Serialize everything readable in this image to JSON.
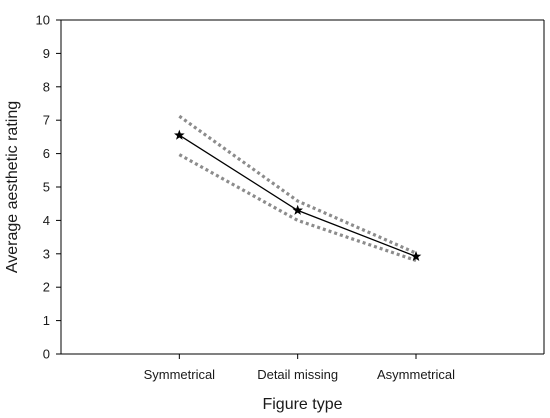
{
  "chart_data": {
    "type": "line",
    "title": "",
    "xlabel": "Figure type",
    "ylabel": "Average aesthetic rating",
    "categories": [
      "Symmetrical",
      "Detail missing",
      "Asymmetrical"
    ],
    "ylim": [
      0,
      10
    ],
    "yticks": [
      0,
      1,
      2,
      3,
      4,
      5,
      6,
      7,
      8,
      9,
      10
    ],
    "grid": false,
    "series": [
      {
        "values": [
          6.55,
          4.3,
          2.92
        ],
        "style": "solid",
        "marker": "star",
        "color": "#000000"
      },
      {
        "values": [
          7.12,
          4.58,
          3.02
        ],
        "style": "dotted",
        "color": "#8c8c8c"
      },
      {
        "values": [
          5.97,
          4.0,
          2.8
        ],
        "style": "dotted",
        "color": "#8c8c8c"
      }
    ]
  }
}
